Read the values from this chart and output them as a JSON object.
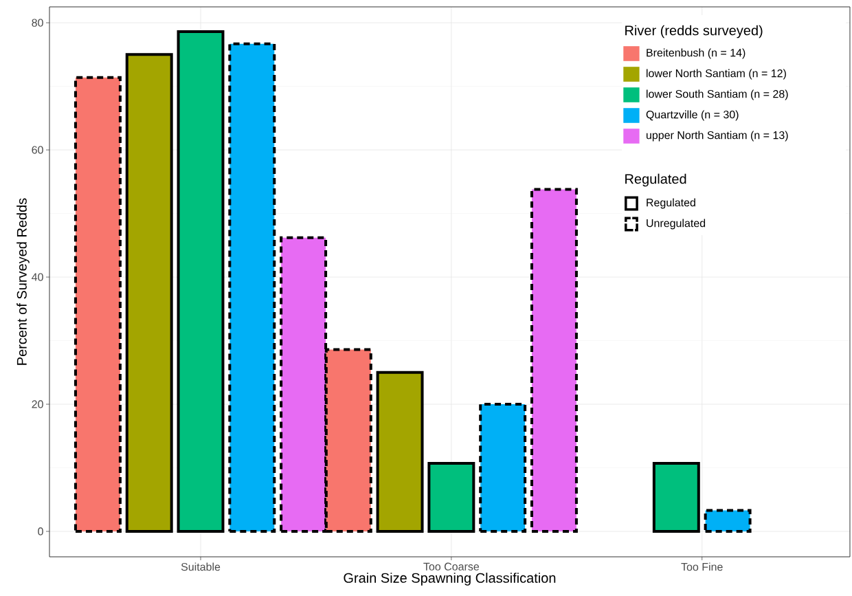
{
  "chart_data": {
    "type": "bar",
    "xlabel": "Grain Size Spawning Classification",
    "ylabel": "Percent of Surveyed Redds",
    "legend_title": "River (redds surveyed)",
    "categories": [
      "Suitable",
      "Too Coarse",
      "Too Fine"
    ],
    "series": [
      {
        "name": "Breitenbush (n = 14)",
        "color": "#f8766d",
        "values": [
          71.4,
          28.6,
          null
        ],
        "line_style": "dashed"
      },
      {
        "name": "lower North Santiam (n = 12)",
        "color": "#a3a500",
        "values": [
          75,
          25,
          null
        ],
        "line_style": "solid"
      },
      {
        "name": "lower South Santiam (n = 28)",
        "color": "#00bf7d",
        "values": [
          78.6,
          10.7,
          10.7
        ],
        "line_style": "solid"
      },
      {
        "name": "Quartzville (n = 30)",
        "color": "#00b0f6",
        "values": [
          76.7,
          20,
          3.3
        ],
        "line_style": "dashed"
      },
      {
        "name": "upper North Santiam (n = 13)",
        "color": "#e76bf3",
        "values": [
          46.2,
          53.8,
          null
        ],
        "line_style": "dashed"
      }
    ],
    "annotations": [
      "Regulated",
      "Regulated",
      "Unregulated"
    ],
    "ylim": [
      -4,
      82.5
    ],
    "yticks": [
      0,
      20,
      40,
      60,
      80
    ],
    "grid": true,
    "legend": "top right"
  }
}
